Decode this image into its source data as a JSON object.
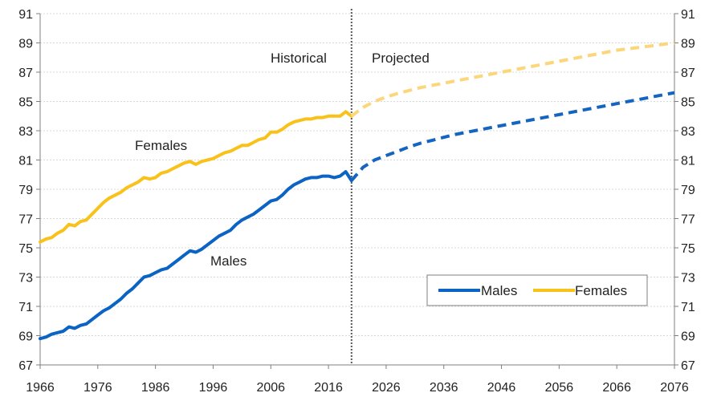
{
  "chart_data": {
    "type": "line",
    "xlim": [
      1966,
      2076
    ],
    "ylim": [
      67,
      91
    ],
    "xticks": [
      1966,
      1976,
      1986,
      1996,
      2006,
      2016,
      2026,
      2036,
      2046,
      2056,
      2066,
      2076
    ],
    "yticks": [
      67,
      69,
      71,
      73,
      75,
      77,
      79,
      81,
      83,
      85,
      87,
      89,
      91
    ],
    "grid": "horizontal",
    "legend_position": "bottom-right",
    "divider_year": 2020,
    "annotations": {
      "historical": "Historical",
      "projected": "Projected",
      "females": "Females",
      "males": "Males"
    },
    "series": [
      {
        "name": "Males",
        "color": "#0b63c4",
        "projected_color": "#1565c0",
        "historical": {
          "x": [
            1966,
            1967,
            1968,
            1969,
            1970,
            1971,
            1972,
            1973,
            1974,
            1975,
            1976,
            1977,
            1978,
            1979,
            1980,
            1981,
            1982,
            1983,
            1984,
            1985,
            1986,
            1987,
            1988,
            1989,
            1990,
            1991,
            1992,
            1993,
            1994,
            1995,
            1996,
            1997,
            1998,
            1999,
            2000,
            2001,
            2002,
            2003,
            2004,
            2005,
            2006,
            2007,
            2008,
            2009,
            2010,
            2011,
            2012,
            2013,
            2014,
            2015,
            2016,
            2017,
            2018,
            2019,
            2020
          ],
          "y": [
            68.8,
            68.9,
            69.1,
            69.2,
            69.3,
            69.6,
            69.5,
            69.7,
            69.8,
            70.1,
            70.4,
            70.7,
            70.9,
            71.2,
            71.5,
            71.9,
            72.2,
            72.6,
            73.0,
            73.1,
            73.3,
            73.5,
            73.6,
            73.9,
            74.2,
            74.5,
            74.8,
            74.7,
            74.9,
            75.2,
            75.5,
            75.8,
            76.0,
            76.2,
            76.6,
            76.9,
            77.1,
            77.3,
            77.6,
            77.9,
            78.2,
            78.3,
            78.6,
            79.0,
            79.3,
            79.5,
            79.7,
            79.8,
            79.8,
            79.9,
            79.9,
            79.8,
            79.9,
            80.2,
            79.6
          ]
        },
        "projected": {
          "x": [
            2020,
            2022,
            2024,
            2026,
            2028,
            2030,
            2032,
            2034,
            2036,
            2038,
            2040,
            2042,
            2044,
            2046,
            2048,
            2050,
            2052,
            2054,
            2056,
            2058,
            2060,
            2062,
            2064,
            2066,
            2068,
            2070,
            2072,
            2074,
            2076
          ],
          "y": [
            79.6,
            80.5,
            81.0,
            81.3,
            81.6,
            81.9,
            82.15,
            82.35,
            82.55,
            82.75,
            82.9,
            83.05,
            83.2,
            83.35,
            83.5,
            83.65,
            83.8,
            83.95,
            84.1,
            84.25,
            84.4,
            84.55,
            84.7,
            84.85,
            85.0,
            85.15,
            85.3,
            85.45,
            85.6
          ]
        }
      },
      {
        "name": "Females",
        "color": "#f9c21a",
        "projected_color": "#fcd67a",
        "historical": {
          "x": [
            1966,
            1967,
            1968,
            1969,
            1970,
            1971,
            1972,
            1973,
            1974,
            1975,
            1976,
            1977,
            1978,
            1979,
            1980,
            1981,
            1982,
            1983,
            1984,
            1985,
            1986,
            1987,
            1988,
            1989,
            1990,
            1991,
            1992,
            1993,
            1994,
            1995,
            1996,
            1997,
            1998,
            1999,
            2000,
            2001,
            2002,
            2003,
            2004,
            2005,
            2006,
            2007,
            2008,
            2009,
            2010,
            2011,
            2012,
            2013,
            2014,
            2015,
            2016,
            2017,
            2018,
            2019,
            2020
          ],
          "y": [
            75.4,
            75.6,
            75.7,
            76.0,
            76.2,
            76.6,
            76.5,
            76.8,
            76.9,
            77.3,
            77.7,
            78.1,
            78.4,
            78.6,
            78.8,
            79.1,
            79.3,
            79.5,
            79.8,
            79.7,
            79.8,
            80.1,
            80.2,
            80.4,
            80.6,
            80.8,
            80.9,
            80.7,
            80.9,
            81.0,
            81.1,
            81.3,
            81.5,
            81.6,
            81.8,
            82.0,
            82.0,
            82.2,
            82.4,
            82.5,
            82.9,
            82.9,
            83.1,
            83.4,
            83.6,
            83.7,
            83.8,
            83.8,
            83.9,
            83.9,
            84.0,
            84.0,
            84.0,
            84.3,
            84.0
          ]
        },
        "projected": {
          "x": [
            2020,
            2022,
            2024,
            2026,
            2028,
            2030,
            2032,
            2034,
            2036,
            2038,
            2040,
            2042,
            2044,
            2046,
            2048,
            2050,
            2052,
            2054,
            2056,
            2058,
            2060,
            2062,
            2064,
            2066,
            2068,
            2070,
            2072,
            2074,
            2076
          ],
          "y": [
            84.0,
            84.6,
            85.0,
            85.3,
            85.55,
            85.75,
            85.95,
            86.1,
            86.25,
            86.4,
            86.55,
            86.7,
            86.85,
            87.0,
            87.15,
            87.3,
            87.45,
            87.6,
            87.75,
            87.9,
            88.05,
            88.2,
            88.35,
            88.5,
            88.6,
            88.7,
            88.8,
            88.9,
            89.0
          ]
        }
      }
    ]
  }
}
